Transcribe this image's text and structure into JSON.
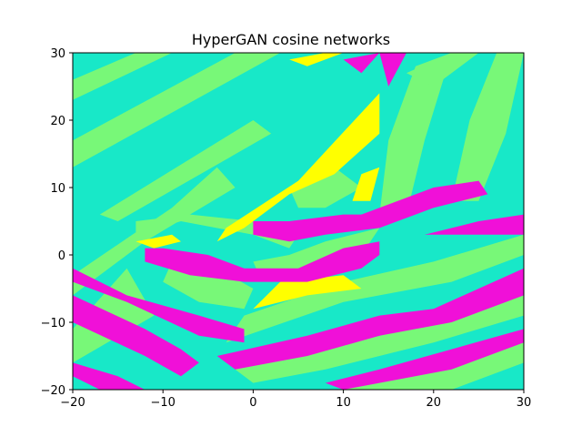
{
  "chart_data": {
    "type": "heatmap",
    "title": "HyperGAN cosine networks",
    "xlabel": "",
    "ylabel": "",
    "xlim": [
      -20,
      30
    ],
    "ylim": [
      -20,
      30
    ],
    "x_ticks": [
      "-20",
      "-10",
      "0",
      "10",
      "20",
      "30"
    ],
    "y_ticks": [
      "-20",
      "-10",
      "0",
      "10",
      "20",
      "30"
    ],
    "grid": false,
    "legend": "none",
    "classes": [
      {
        "id": 0,
        "color": "#18e8c8"
      },
      {
        "id": 1,
        "color": "#78f878"
      },
      {
        "id": 2,
        "color": "#f010d8"
      },
      {
        "id": 3,
        "color": "#ffff00"
      }
    ],
    "background_class": 0,
    "regions": [
      {
        "class": 1,
        "polygon": [
          [
            -20,
            26
          ],
          [
            -13,
            30
          ],
          [
            -9,
            30
          ],
          [
            -20,
            23
          ]
        ]
      },
      {
        "class": 1,
        "polygon": [
          [
            -20,
            17
          ],
          [
            -2,
            30
          ],
          [
            3,
            30
          ],
          [
            -20,
            13
          ]
        ]
      },
      {
        "class": 1,
        "polygon": [
          [
            -17,
            6
          ],
          [
            0,
            20
          ],
          [
            2,
            18
          ],
          [
            -15,
            5
          ]
        ]
      },
      {
        "class": 1,
        "polygon": [
          [
            -20,
            -3
          ],
          [
            -9,
            7
          ],
          [
            -4,
            13
          ],
          [
            -2,
            10
          ],
          [
            -12,
            2
          ],
          [
            -20,
            -6
          ]
        ]
      },
      {
        "class": 1,
        "polygon": [
          [
            -20,
            -11
          ],
          [
            -14,
            -2
          ],
          [
            -11,
            -9
          ],
          [
            -20,
            -16
          ]
        ]
      },
      {
        "class": 1,
        "polygon": [
          [
            -10,
            -4
          ],
          [
            -6,
            -7
          ],
          [
            -1,
            -8
          ],
          [
            0,
            -5
          ],
          [
            -4,
            -2
          ],
          [
            -9,
            -1
          ]
        ]
      },
      {
        "class": 1,
        "polygon": [
          [
            -13,
            3
          ],
          [
            -8,
            5
          ],
          [
            0,
            3
          ],
          [
            4,
            1
          ],
          [
            5,
            3
          ],
          [
            0,
            5
          ],
          [
            -7,
            6
          ],
          [
            -13,
            5
          ]
        ]
      },
      {
        "class": 1,
        "polygon": [
          [
            -3,
            -13
          ],
          [
            10,
            -7
          ],
          [
            22,
            -4
          ],
          [
            30,
            0
          ],
          [
            30,
            3
          ],
          [
            20,
            -1
          ],
          [
            10,
            -4
          ],
          [
            -1,
            -9
          ]
        ]
      },
      {
        "class": 1,
        "polygon": [
          [
            -2,
            -17
          ],
          [
            8,
            -14
          ],
          [
            20,
            -10
          ],
          [
            30,
            -6
          ],
          [
            30,
            -9
          ],
          [
            20,
            -13
          ],
          [
            8,
            -17
          ],
          [
            0,
            -19
          ]
        ]
      },
      {
        "class": 1,
        "polygon": [
          [
            10,
            -20
          ],
          [
            20,
            -16
          ],
          [
            30,
            -13
          ],
          [
            30,
            -16
          ],
          [
            22,
            -20
          ]
        ]
      },
      {
        "class": 1,
        "polygon": [
          [
            0,
            -1
          ],
          [
            4,
            0
          ],
          [
            8,
            2
          ],
          [
            14,
            4
          ],
          [
            12,
            0
          ],
          [
            6,
            -2
          ],
          [
            1,
            -4
          ]
        ]
      },
      {
        "class": 1,
        "polygon": [
          [
            4,
            10
          ],
          [
            9,
            13
          ],
          [
            12,
            10
          ],
          [
            8,
            7
          ],
          [
            5,
            7
          ]
        ]
      },
      {
        "class": 1,
        "polygon": [
          [
            14,
            6
          ],
          [
            15,
            17
          ],
          [
            18,
            28
          ],
          [
            22,
            30
          ],
          [
            19,
            17
          ],
          [
            17,
            6
          ]
        ]
      },
      {
        "class": 1,
        "polygon": [
          [
            22,
            8
          ],
          [
            24,
            20
          ],
          [
            27,
            30
          ],
          [
            30,
            30
          ],
          [
            28,
            18
          ],
          [
            25,
            8
          ]
        ]
      },
      {
        "class": 1,
        "polygon": [
          [
            17,
            27
          ],
          [
            22,
            30
          ],
          [
            25,
            30
          ],
          [
            20,
            25
          ]
        ]
      },
      {
        "class": 3,
        "polygon": [
          [
            -3,
            4
          ],
          [
            5,
            11
          ],
          [
            14,
            24
          ],
          [
            14,
            18
          ],
          [
            9,
            12
          ],
          [
            4,
            9
          ],
          [
            -1,
            4
          ],
          [
            -4,
            2
          ]
        ]
      },
      {
        "class": 3,
        "polygon": [
          [
            -13,
            2
          ],
          [
            -11,
            1
          ],
          [
            -8,
            2
          ],
          [
            -9,
            3
          ]
        ]
      },
      {
        "class": 3,
        "polygon": [
          [
            0,
            -8
          ],
          [
            6,
            -6
          ],
          [
            12,
            -5
          ],
          [
            10,
            -3
          ],
          [
            3,
            -4
          ]
        ]
      },
      {
        "class": 3,
        "polygon": [
          [
            4,
            29
          ],
          [
            8,
            30
          ],
          [
            10,
            30
          ],
          [
            6,
            28
          ]
        ]
      },
      {
        "class": 3,
        "polygon": [
          [
            11,
            8
          ],
          [
            12,
            12
          ],
          [
            14,
            13
          ],
          [
            13,
            8
          ]
        ]
      },
      {
        "class": 2,
        "polygon": [
          [
            -12,
            -1
          ],
          [
            -7,
            -3
          ],
          [
            -1,
            -4
          ],
          [
            6,
            -4
          ],
          [
            12,
            -2
          ],
          [
            14,
            0
          ],
          [
            14,
            2
          ],
          [
            10,
            1
          ],
          [
            5,
            -2
          ],
          [
            -1,
            -2
          ],
          [
            -5,
            0
          ],
          [
            -10,
            1
          ],
          [
            -12,
            1
          ]
        ]
      },
      {
        "class": 2,
        "polygon": [
          [
            -20,
            -4
          ],
          [
            -14,
            -7
          ],
          [
            -6,
            -12
          ],
          [
            -1,
            -13
          ],
          [
            -1,
            -11
          ],
          [
            -6,
            -9
          ],
          [
            -14,
            -6
          ],
          [
            -20,
            -2
          ]
        ]
      },
      {
        "class": 2,
        "polygon": [
          [
            -20,
            -6
          ],
          [
            -12,
            -11
          ],
          [
            -8,
            -14
          ],
          [
            -6,
            -16
          ],
          [
            -8,
            -18
          ],
          [
            -12,
            -15
          ],
          [
            -20,
            -10
          ]
        ]
      },
      {
        "class": 2,
        "polygon": [
          [
            -20,
            -16
          ],
          [
            -15,
            -18
          ],
          [
            -12,
            -20
          ],
          [
            -17,
            -20
          ],
          [
            -20,
            -18
          ]
        ]
      },
      {
        "class": 2,
        "polygon": [
          [
            -4,
            -15
          ],
          [
            6,
            -12
          ],
          [
            14,
            -9
          ],
          [
            20,
            -8
          ],
          [
            30,
            -2
          ],
          [
            30,
            -6
          ],
          [
            22,
            -10
          ],
          [
            14,
            -12
          ],
          [
            6,
            -15
          ],
          [
            -2,
            -17
          ]
        ]
      },
      {
        "class": 2,
        "polygon": [
          [
            8,
            -19
          ],
          [
            14,
            -17
          ],
          [
            22,
            -14
          ],
          [
            30,
            -11
          ],
          [
            30,
            -13
          ],
          [
            22,
            -17
          ],
          [
            14,
            -19
          ],
          [
            10,
            -20
          ]
        ]
      },
      {
        "class": 2,
        "polygon": [
          [
            0,
            3
          ],
          [
            0,
            5
          ],
          [
            4,
            5
          ],
          [
            10,
            6
          ],
          [
            14,
            6
          ],
          [
            14,
            4
          ],
          [
            8,
            3
          ],
          [
            4,
            2
          ]
        ]
      },
      {
        "class": 2,
        "polygon": [
          [
            10,
            5
          ],
          [
            14,
            7
          ],
          [
            20,
            10
          ],
          [
            25,
            11
          ],
          [
            26,
            9
          ],
          [
            20,
            7
          ],
          [
            14,
            4
          ]
        ]
      },
      {
        "class": 2,
        "polygon": [
          [
            19,
            3
          ],
          [
            25,
            5
          ],
          [
            30,
            6
          ],
          [
            30,
            3
          ],
          [
            25,
            3
          ]
        ]
      },
      {
        "class": 2,
        "polygon": [
          [
            14,
            30
          ],
          [
            15,
            25
          ],
          [
            17,
            30
          ]
        ]
      },
      {
        "class": 2,
        "polygon": [
          [
            10,
            29
          ],
          [
            12,
            27
          ],
          [
            14,
            30
          ]
        ]
      }
    ]
  }
}
